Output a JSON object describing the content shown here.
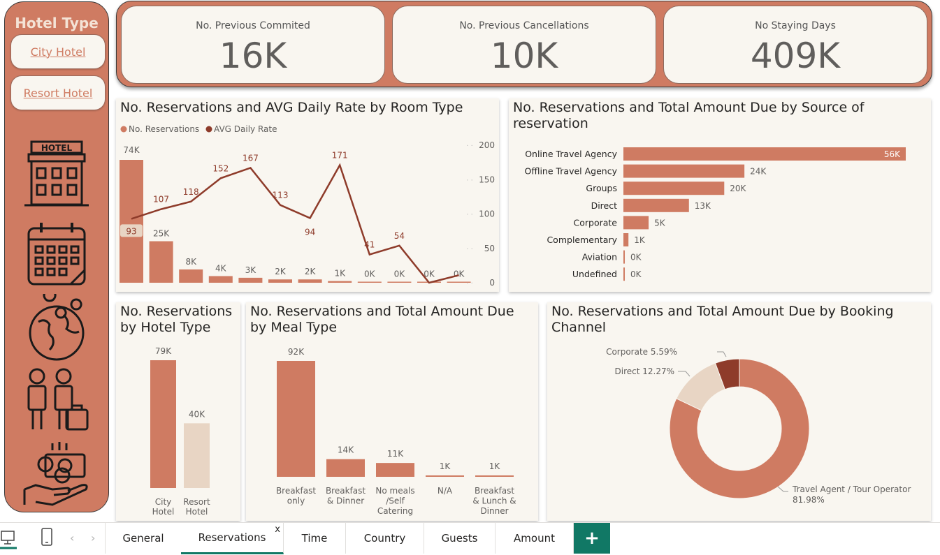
{
  "sidebar": {
    "title": "Hotel Type",
    "buttons": [
      "City Hotel",
      "Resort Hotel"
    ],
    "hotel_icon_text": "HOTEL",
    "icons": [
      "hotel-icon",
      "calendar-icon",
      "globe-icon",
      "guests-icon",
      "money-hand-icon"
    ]
  },
  "kpis": [
    {
      "title": "No. Previous Commited",
      "value": "16K"
    },
    {
      "title": "No. Previous Cancellations",
      "value": "10K"
    },
    {
      "title": "No Staying Days",
      "value": "409K"
    }
  ],
  "colors": {
    "accent": "#cf7b62",
    "line": "#8e3b2a",
    "light": "#e8d5c4",
    "panel_bg": "#f9f6f0",
    "tab_accent": "#117865"
  },
  "room_type_chart": {
    "title": "No. Reservations and AVG Daily Rate by Room Type",
    "legend": [
      "No. Reservations",
      "AVG Daily Rate"
    ],
    "chart_data": {
      "type": "bar",
      "bar_values": [
        74,
        25,
        8,
        4,
        3,
        2,
        2,
        1,
        0,
        0,
        0,
        0
      ],
      "bar_labels": [
        "74K",
        "25K",
        "8K",
        "4K",
        "3K",
        "2K",
        "2K",
        "1K",
        "0K",
        "0K",
        "0K",
        "0K"
      ],
      "line_values": [
        93,
        107,
        118,
        152,
        167,
        113,
        94,
        171,
        41,
        54,
        0,
        11
      ],
      "line_labels": [
        "93",
        "107",
        "118",
        "152",
        "167",
        "113",
        "94",
        "171",
        "41",
        "54",
        "",
        ""
      ],
      "y2_ticks": [
        "200",
        "150",
        "100",
        "50",
        "0"
      ],
      "y2_lim": [
        0,
        200
      ],
      "y_lim": [
        0,
        74
      ]
    }
  },
  "source_chart": {
    "title": "No. Reservations and Total Amount Due by Source of reservation",
    "chart_data": {
      "type": "bar",
      "categories": [
        "Online Travel Agency",
        "Offline Travel Agency",
        "Groups",
        "Direct",
        "Corporate",
        "Complementary",
        "Aviation",
        "Undefined"
      ],
      "values": [
        56,
        24,
        20,
        13,
        5,
        1,
        0.2,
        0.05
      ],
      "labels": [
        "56K",
        "24K",
        "20K",
        "13K",
        "5K",
        "1K",
        "0K",
        "0K"
      ]
    }
  },
  "hotel_chart": {
    "title": "No. Reservations by Hotel Type",
    "chart_data": {
      "type": "bar",
      "categories": [
        "City Hotel",
        "Resort Hotel"
      ],
      "values": [
        79,
        40
      ],
      "labels": [
        "79K",
        "40K"
      ]
    }
  },
  "meal_chart": {
    "title": "No. Reservations and Total Amount Due by Meal Type",
    "chart_data": {
      "type": "bar",
      "categories": [
        "Breakfast only",
        "Breakfast & Dinner",
        "No meals /Self Catering",
        "N/A",
        "Breakfast & Lunch & Dinner"
      ],
      "category_lines": [
        [
          "Breakfast",
          "only"
        ],
        [
          "Breakfast",
          "& Dinner"
        ],
        [
          "No meals",
          "/Self",
          "Catering"
        ],
        [
          "N/A"
        ],
        [
          "Breakfast",
          "& Lunch &",
          "Dinner"
        ]
      ],
      "values": [
        92,
        14,
        11,
        1,
        1
      ],
      "labels": [
        "92K",
        "14K",
        "11K",
        "1K",
        "1K"
      ]
    }
  },
  "channel_chart": {
    "title": "No. Reservations and Total Amount Due by Booking Channel",
    "chart_data": {
      "type": "pie",
      "categories": [
        "Travel Agent / Tour Operator",
        "Direct",
        "Corporate"
      ],
      "values": [
        81.98,
        12.27,
        5.59
      ],
      "labels": [
        "Travel Agent / Tour Operator",
        "Direct 12.27%",
        "Corporate 5.59%"
      ],
      "percent_label": "81.98%"
    }
  },
  "tabs": [
    "General",
    "Reservations",
    "Time",
    "Country",
    "Guests",
    "Amount"
  ],
  "active_tab": "Reservations",
  "tab_close": "x",
  "add_tab": "+",
  "nav_arrows": [
    "‹",
    "›"
  ]
}
